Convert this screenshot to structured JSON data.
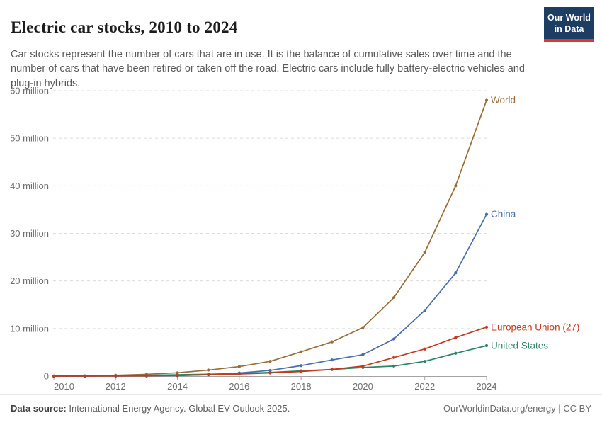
{
  "header": {
    "title": "Electric car stocks, 2010 to 2024",
    "subtitle": "Car stocks represent the number of cars that are in use. It is the balance of cumulative sales over time and the number of cars that have been retired or taken off the road. Electric cars include fully battery-electric vehicles and plug-in hybrids.",
    "logo": {
      "line1": "Our World",
      "line2": "in Data",
      "bg_color": "#1d3d63",
      "accent_color": "#dc382d"
    }
  },
  "chart_data": {
    "type": "line",
    "title": "Electric car stocks, 2010 to 2024",
    "xlabel": "",
    "ylabel": "",
    "unit": "million cars",
    "x": [
      2010,
      2011,
      2012,
      2013,
      2014,
      2015,
      2016,
      2017,
      2018,
      2019,
      2020,
      2021,
      2022,
      2023,
      2024
    ],
    "series": [
      {
        "name": "World",
        "color": "#996D39",
        "values": [
          0.02,
          0.06,
          0.18,
          0.38,
          0.7,
          1.26,
          2.0,
          3.1,
          5.1,
          7.2,
          10.2,
          16.5,
          26.0,
          40.0,
          58.0
        ]
      },
      {
        "name": "China",
        "color": "#4A6DAC",
        "values": [
          0.0,
          0.01,
          0.02,
          0.04,
          0.1,
          0.31,
          0.65,
          1.2,
          2.2,
          3.4,
          4.5,
          7.8,
          13.8,
          21.7,
          34.0
        ]
      },
      {
        "name": "European Union (27)",
        "color": "#C23A1F",
        "values": [
          0.0,
          0.01,
          0.03,
          0.07,
          0.14,
          0.28,
          0.45,
          0.67,
          0.97,
          1.4,
          2.1,
          3.9,
          5.7,
          8.1,
          10.3
        ]
      },
      {
        "name": "United States",
        "color": "#2C8465",
        "values": [
          0.0,
          0.02,
          0.07,
          0.17,
          0.29,
          0.4,
          0.56,
          0.76,
          1.1,
          1.4,
          1.8,
          2.1,
          3.1,
          4.8,
          6.4
        ]
      }
    ],
    "draw_order": [
      0,
      1,
      3,
      2
    ],
    "ylim": [
      0,
      60
    ],
    "y_ticks": [
      {
        "value": 0,
        "label": "0"
      },
      {
        "value": 10,
        "label": "10 million"
      },
      {
        "value": 20,
        "label": "20 million"
      },
      {
        "value": 30,
        "label": "30 million"
      },
      {
        "value": 40,
        "label": "40 million"
      },
      {
        "value": 50,
        "label": "50 million"
      },
      {
        "value": 60,
        "label": "60 million"
      }
    ],
    "x_ticks": [
      2010,
      2012,
      2014,
      2016,
      2018,
      2020,
      2022,
      2024
    ],
    "grid": "horizontal-dashed",
    "legend_position": "end-of-line-labels"
  },
  "footer": {
    "source_label": "Data source:",
    "source_text": " International Energy Agency. Global EV Outlook 2025.",
    "credit": "OurWorldinData.org/energy | CC BY"
  }
}
